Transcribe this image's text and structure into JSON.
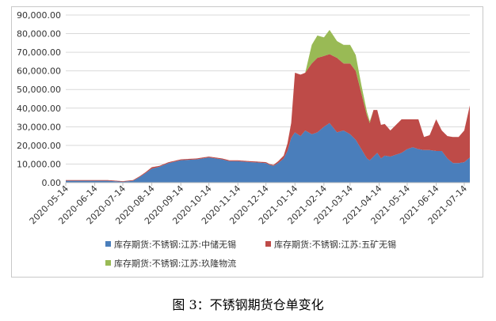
{
  "caption": "图 3：不锈钢期货仓单变化",
  "chart_data": {
    "type": "area",
    "stacked": true,
    "ylim": [
      0,
      90000
    ],
    "y_ticks": [
      "0.00",
      "10,000.00",
      "20,000.00",
      "30,000.00",
      "40,000.00",
      "50,000.00",
      "60,000.00",
      "70,000.00",
      "80,000.00",
      "90,000.00"
    ],
    "x_range": [
      "2020-05-14",
      "2021-07-20"
    ],
    "x_ticks": [
      "2020-05-14",
      "2020-06-14",
      "2020-07-14",
      "2020-08-14",
      "2020-09-14",
      "2020-10-14",
      "2020-11-14",
      "2020-12-14",
      "2021-01-14",
      "2021-02-14",
      "2021-03-14",
      "2021-04-14",
      "2021-05-14",
      "2021-06-14",
      "2021-07-14"
    ],
    "grid": true,
    "legend_position": "bottom",
    "series": [
      {
        "name": "库存期货:不锈钢:江苏:中储无锡",
        "color": "#4a7ebb",
        "x": [
          "2020-05-14",
          "2020-05-28",
          "2020-06-14",
          "2020-06-28",
          "2020-07-14",
          "2020-07-25",
          "2020-08-01",
          "2020-08-07",
          "2020-08-14",
          "2020-08-22",
          "2020-09-01",
          "2020-09-14",
          "2020-10-01",
          "2020-10-14",
          "2020-10-28",
          "2020-11-05",
          "2020-11-14",
          "2020-11-28",
          "2020-12-05",
          "2020-12-14",
          "2020-12-18",
          "2020-12-22",
          "2020-12-27",
          "2021-01-02",
          "2021-01-06",
          "2021-01-10",
          "2021-01-14",
          "2021-01-20",
          "2021-01-25",
          "2021-02-01",
          "2021-02-07",
          "2021-02-14",
          "2021-02-20",
          "2021-02-28",
          "2021-03-07",
          "2021-03-14",
          "2021-03-20",
          "2021-03-26",
          "2021-04-01",
          "2021-04-04",
          "2021-04-08",
          "2021-04-12",
          "2021-04-16",
          "2021-04-20",
          "2021-04-26",
          "2021-05-02",
          "2021-05-08",
          "2021-05-14",
          "2021-05-20",
          "2021-05-26",
          "2021-06-01",
          "2021-06-07",
          "2021-06-14",
          "2021-06-20",
          "2021-06-26",
          "2021-07-02",
          "2021-07-08",
          "2021-07-14",
          "2021-07-20"
        ],
        "values": [
          1000,
          1000,
          1000,
          1000,
          500,
          1000,
          3000,
          5000,
          7500,
          8500,
          10500,
          12000,
          12500,
          13500,
          12500,
          11500,
          11500,
          11000,
          10800,
          10500,
          9500,
          9000,
          10500,
          13000,
          17000,
          24000,
          27000,
          25000,
          28000,
          26000,
          27000,
          30000,
          32000,
          27000,
          28000,
          26000,
          23000,
          18000,
          13000,
          12000,
          14000,
          16000,
          13000,
          14500,
          14000,
          15000,
          16000,
          18000,
          19000,
          18000,
          17500,
          17500,
          17000,
          17000,
          13000,
          10500,
          10500,
          11000,
          13500
        ]
      },
      {
        "name": "库存期货:不锈钢:江苏:五矿无锡",
        "color": "#be4b48",
        "x": [
          "2020-05-14",
          "2020-06-14",
          "2020-07-14",
          "2020-08-07",
          "2020-08-14",
          "2020-08-22",
          "2020-09-14",
          "2020-10-14",
          "2020-11-14",
          "2020-12-14",
          "2020-12-22",
          "2021-01-02",
          "2021-01-06",
          "2021-01-10",
          "2021-01-14",
          "2021-01-20",
          "2021-01-25",
          "2021-02-01",
          "2021-02-07",
          "2021-02-14",
          "2021-02-20",
          "2021-02-28",
          "2021-03-07",
          "2021-03-14",
          "2021-03-20",
          "2021-03-26",
          "2021-04-01",
          "2021-04-04",
          "2021-04-08",
          "2021-04-12",
          "2021-04-16",
          "2021-04-20",
          "2021-04-26",
          "2021-05-02",
          "2021-05-08",
          "2021-05-14",
          "2021-05-20",
          "2021-05-26",
          "2021-06-01",
          "2021-06-07",
          "2021-06-14",
          "2021-06-20",
          "2021-06-26",
          "2021-07-02",
          "2021-07-08",
          "2021-07-14",
          "2021-07-20"
        ],
        "values": [
          400,
          400,
          300,
          500,
          800,
          500,
          500,
          500,
          500,
          500,
          500,
          1500,
          4000,
          8000,
          32000,
          33000,
          31000,
          38000,
          40000,
          38000,
          37000,
          40000,
          36000,
          38000,
          37000,
          30000,
          23000,
          20000,
          25000,
          23000,
          18000,
          17000,
          14000,
          16000,
          18000,
          16000,
          15000,
          16000,
          7000,
          8000,
          17000,
          11000,
          12000,
          14000,
          14000,
          17000,
          28000
        ]
      },
      {
        "name": "库存期货:不锈钢:江苏:玖隆物流",
        "color": "#99ba55",
        "x": [
          "2020-05-14",
          "2021-01-25",
          "2021-02-01",
          "2021-02-07",
          "2021-02-14",
          "2021-02-20",
          "2021-02-28",
          "2021-03-07",
          "2021-03-14",
          "2021-03-20",
          "2021-03-26",
          "2021-04-01",
          "2021-04-04",
          "2021-04-08",
          "2021-07-20"
        ],
        "values": [
          0,
          0,
          10000,
          12000,
          10000,
          13000,
          9000,
          10000,
          10000,
          8500,
          4500,
          2000,
          1000,
          0,
          0
        ]
      }
    ]
  }
}
